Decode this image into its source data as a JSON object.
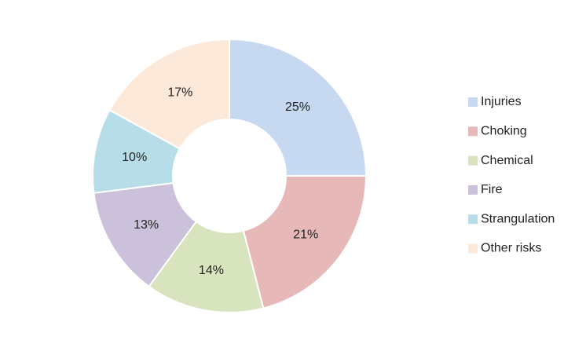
{
  "chart_data": {
    "type": "donut",
    "categories": [
      "Injuries",
      "Choking",
      "Chemical",
      "Fire",
      "Strangulation",
      "Other risks"
    ],
    "values": [
      25,
      21,
      14,
      13,
      10,
      17
    ],
    "value_labels": [
      "25%",
      "21%",
      "14%",
      "13%",
      "10%",
      "17%"
    ],
    "colors": [
      "#c6d9f1",
      "#e6b9b8",
      "#d7e4bd",
      "#ccc1da",
      "#b7dee8",
      "#fde9d9"
    ],
    "legend": "right"
  }
}
